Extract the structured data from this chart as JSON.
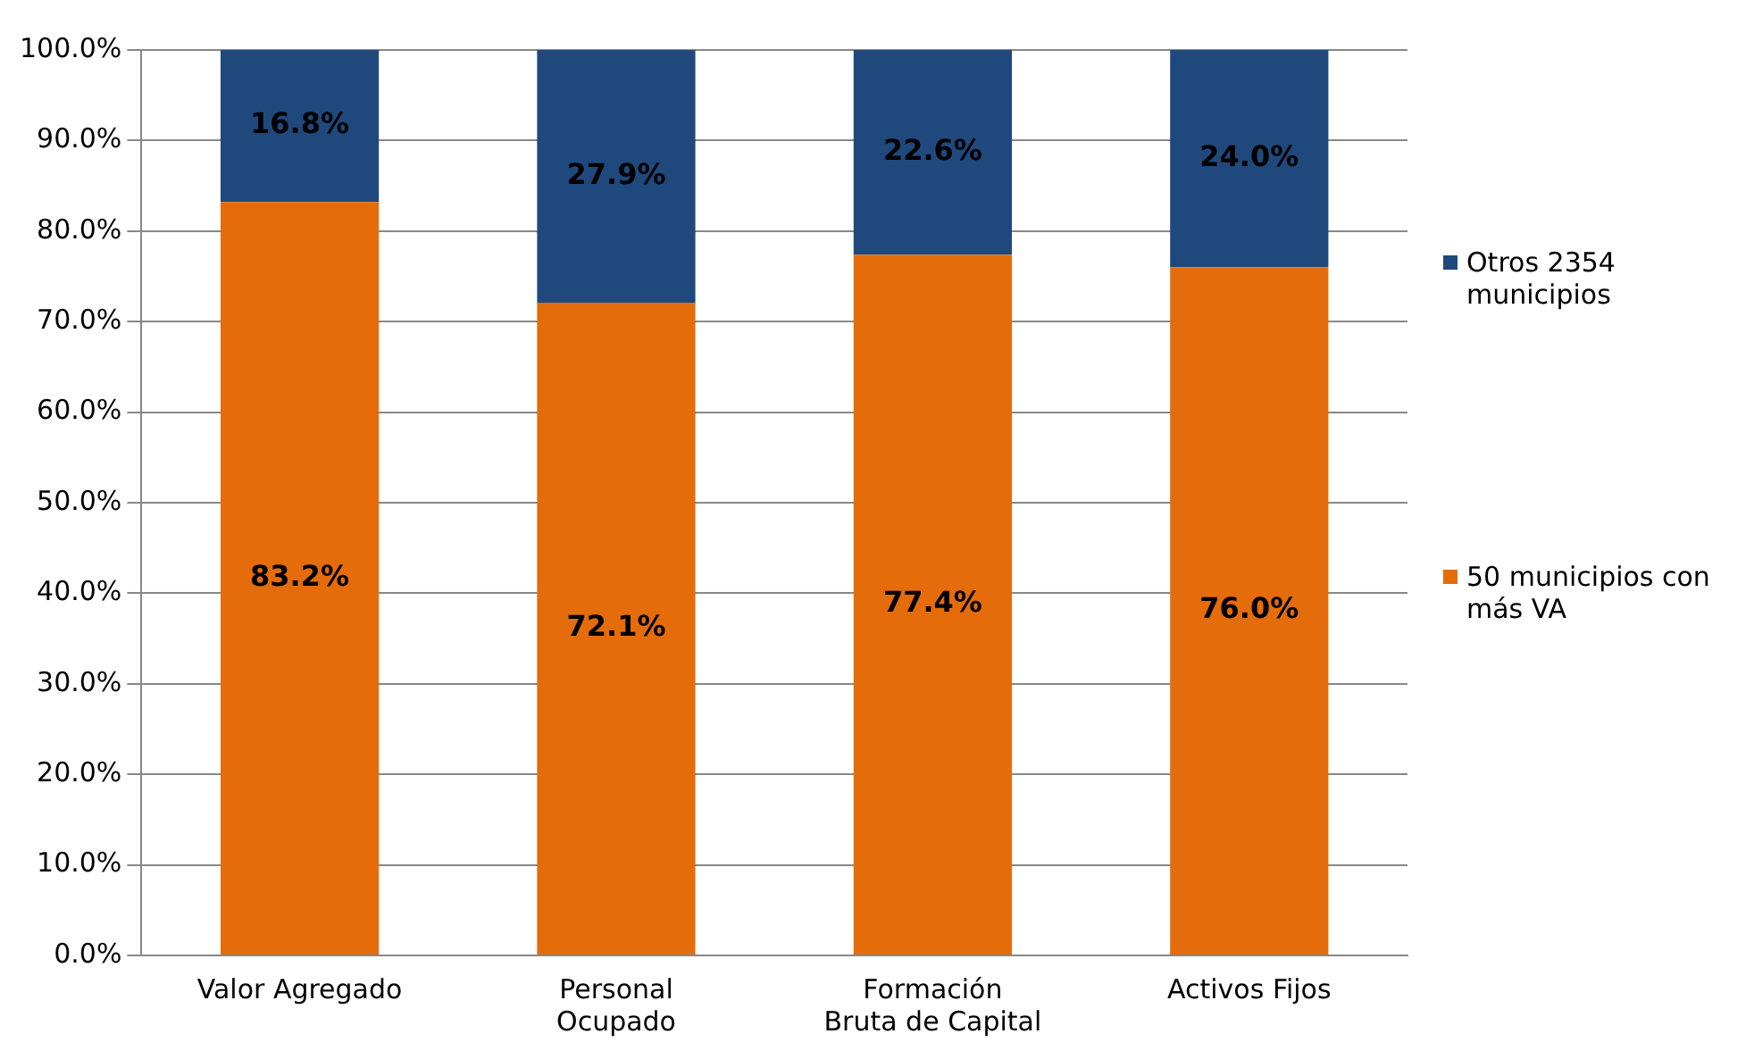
{
  "chart_data": {
    "type": "bar",
    "stacked": true,
    "categories": [
      "Valor Agregado",
      "Personal Ocupado",
      "Formación Bruta de Capital",
      "Activos Fijos"
    ],
    "series": [
      {
        "name": "50 municipios con más VA",
        "color": "#e46c0a",
        "values": [
          83.2,
          72.1,
          77.4,
          76.0
        ],
        "value_labels": [
          "83.2%",
          "72.1%",
          "77.4%",
          "76.0%"
        ]
      },
      {
        "name": "Otros 2354 municipios",
        "color": "#1f497d",
        "values": [
          16.8,
          27.9,
          22.6,
          24.0
        ],
        "value_labels": [
          "16.8%",
          "27.9%",
          "22.6%",
          "24.0%"
        ]
      }
    ],
    "ylim": [
      0,
      100
    ],
    "yticks": [
      {
        "value": 0,
        "label": "0.0%"
      },
      {
        "value": 10,
        "label": "10.0%"
      },
      {
        "value": 20,
        "label": "20.0%"
      },
      {
        "value": 30,
        "label": "30.0%"
      },
      {
        "value": 40,
        "label": "40.0%"
      },
      {
        "value": 50,
        "label": "50.0%"
      },
      {
        "value": 60,
        "label": "60.0%"
      },
      {
        "value": 70,
        "label": "70.0%"
      },
      {
        "value": 80,
        "label": "80.0%"
      },
      {
        "value": 90,
        "label": "90.0%"
      },
      {
        "value": 100,
        "label": "100.0%"
      }
    ],
    "grid": "y",
    "legend": "right"
  }
}
